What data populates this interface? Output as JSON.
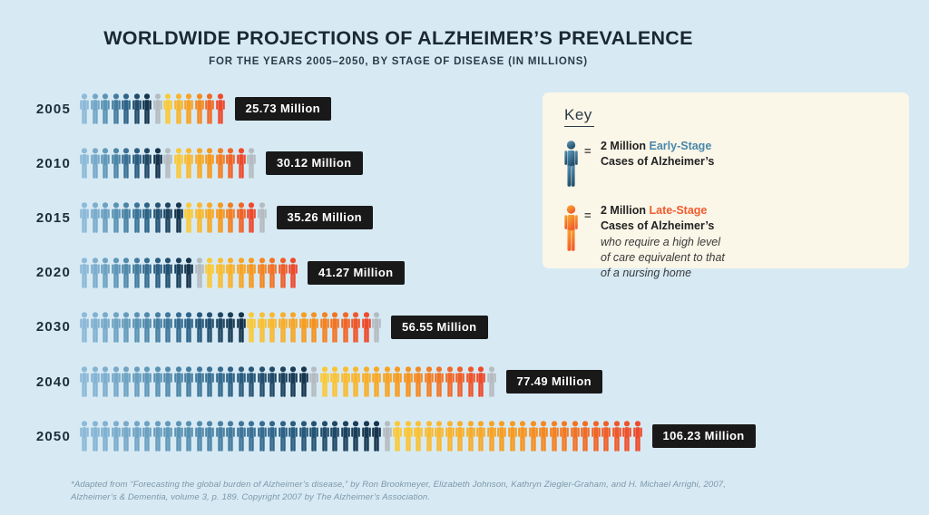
{
  "title": "WORLDWIDE PROJECTIONS OF ALZHEIMER’S PREVALENCE",
  "subtitle": "FOR THE YEARS 2005–2050, BY STAGE OF DISEASE (IN MILLIONS)",
  "colors": {
    "background": "#d7eaf4",
    "title_color": "#1b2833",
    "badge_bg": "#191919",
    "badge_text": "#ffffff",
    "early_gradient": [
      "#8dbad8",
      "#5b93b4",
      "#2e6488",
      "#16344c"
    ],
    "late_gradient": [
      "#f9c93b",
      "#f6991f",
      "#ee4a2c"
    ],
    "gray_icon": "#b5bcc1",
    "key_bg": "#faf6e8",
    "early_label_color": "#4987aa",
    "late_label_color": "#f15b2d",
    "key_icon_blue": [
      "#64a0c2",
      "#1e4a66"
    ],
    "key_icon_orange": [
      "#f9b233",
      "#f1592a"
    ],
    "footnote_color": "#7d97a8"
  },
  "chart_data": {
    "type": "pictogram",
    "title": "Worldwide projections of Alzheimer’s prevalence",
    "unit_per_icon_millions": 2,
    "categories": [
      "2005",
      "2010",
      "2015",
      "2020",
      "2030",
      "2040",
      "2050"
    ],
    "totals_millions": [
      25.73,
      30.12,
      35.26,
      41.27,
      56.55,
      77.49,
      106.23
    ],
    "legend": [
      "Early-Stage",
      "Late-Stage"
    ],
    "rows": [
      {
        "year": "2005",
        "total_millions": 25.73,
        "value_label": "25.73 Million",
        "early_icons": 7,
        "split_gray_icons": 1,
        "late_icons": 6,
        "trailing_gray_icons": 0
      },
      {
        "year": "2010",
        "total_millions": 30.12,
        "value_label": "30.12 Million",
        "early_icons": 8,
        "split_gray_icons": 1,
        "late_icons": 7,
        "trailing_gray_icons": 1
      },
      {
        "year": "2015",
        "total_millions": 35.26,
        "value_label": "35.26 Million",
        "early_icons": 10,
        "split_gray_icons": 0,
        "late_icons": 7,
        "trailing_gray_icons": 1
      },
      {
        "year": "2020",
        "total_millions": 41.27,
        "value_label": "41.27 Million",
        "early_icons": 11,
        "split_gray_icons": 1,
        "late_icons": 9,
        "trailing_gray_icons": 0
      },
      {
        "year": "2030",
        "total_millions": 56.55,
        "value_label": "56.55 Million",
        "early_icons": 16,
        "split_gray_icons": 0,
        "late_icons": 12,
        "trailing_gray_icons": 1
      },
      {
        "year": "2040",
        "total_millions": 77.49,
        "value_label": "77.49 Million",
        "early_icons": 22,
        "split_gray_icons": 1,
        "late_icons": 16,
        "trailing_gray_icons": 1
      },
      {
        "year": "2050",
        "total_millions": 106.23,
        "value_label": "106.23 Million",
        "early_icons": 29,
        "split_gray_icons": 1,
        "late_icons": 24,
        "trailing_gray_icons": 0
      }
    ]
  },
  "key": {
    "heading": "Key",
    "early": {
      "prefix": "2 Million ",
      "stage": "Early-Stage",
      "line2": "Cases of Alzheimer’s"
    },
    "late": {
      "prefix": "2 Million ",
      "stage": "Late-Stage",
      "line2": "Cases of Alzheimer’s",
      "note_line1": "who require a high level",
      "note_line2": "of care equivalent to that",
      "note_line3": "of a nursing home"
    }
  },
  "footnote": {
    "line1": "*Adapted from “Forecasting the global burden of Alzheimer’s disease,” by Ron Brookmeyer, Elizabeth Johnson, Kathryn Ziegler-Graham, and H. Michael Arrighi, 2007,",
    "line2": "Alzheimer’s & Dementia, volume 3, p. 189. Copyright 2007 by The Alzheimer’s Association."
  }
}
